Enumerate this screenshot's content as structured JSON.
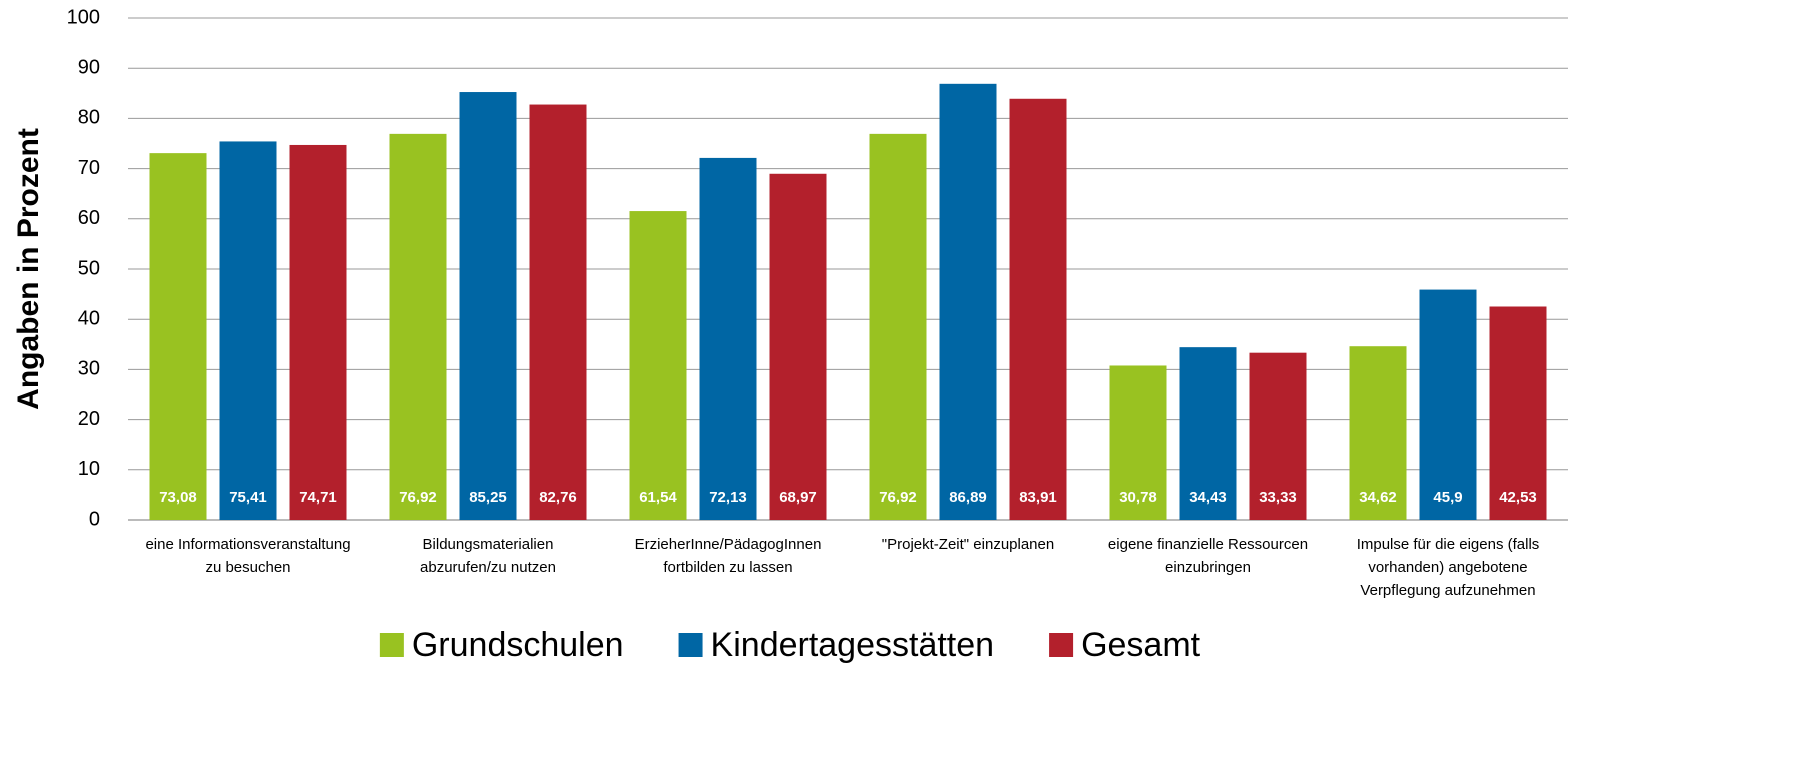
{
  "chart_data": {
    "type": "bar",
    "y_axis_label": "Angaben in Prozent",
    "categories": [
      [
        "eine Informationsveranstaltung",
        "zu besuchen"
      ],
      [
        "Bildungsmaterialien",
        "abzurufen/zu nutzen"
      ],
      [
        "ErzieherInne/PädagogInnen",
        "fortbilden zu lassen"
      ],
      [
        "\"Projekt-Zeit\" einzuplanen"
      ],
      [
        "eigene finanzielle Ressourcen",
        "einzubringen"
      ],
      [
        "Impulse für die eigens (falls",
        "vorhanden) angebotene",
        "Verpflegung aufzunehmen"
      ]
    ],
    "series": [
      {
        "name": "Grundschulen",
        "color": "#99c221",
        "values": [
          73.08,
          76.92,
          61.54,
          76.92,
          30.78,
          34.62
        ],
        "value_labels": [
          "73,08",
          "76,92",
          "61,54",
          "76,92",
          "30,78",
          "34,62"
        ]
      },
      {
        "name": "Kindertagesstätten",
        "color": "#0066a4",
        "values": [
          75.41,
          85.25,
          72.13,
          86.89,
          34.43,
          45.9
        ],
        "value_labels": [
          "75,41",
          "85,25",
          "72,13",
          "86,89",
          "34,43",
          "45,9"
        ]
      },
      {
        "name": "Gesamt",
        "color": "#b3202c",
        "values": [
          74.71,
          82.76,
          68.97,
          83.91,
          33.33,
          42.53
        ],
        "value_labels": [
          "74,71",
          "82,76",
          "68,97",
          "83,91",
          "33,33",
          "42,53"
        ]
      }
    ],
    "ylim": [
      0,
      100
    ],
    "yticks": [
      0,
      10,
      20,
      30,
      40,
      50,
      60,
      70,
      80,
      90,
      100
    ],
    "grid": true,
    "legend": "bottom"
  }
}
